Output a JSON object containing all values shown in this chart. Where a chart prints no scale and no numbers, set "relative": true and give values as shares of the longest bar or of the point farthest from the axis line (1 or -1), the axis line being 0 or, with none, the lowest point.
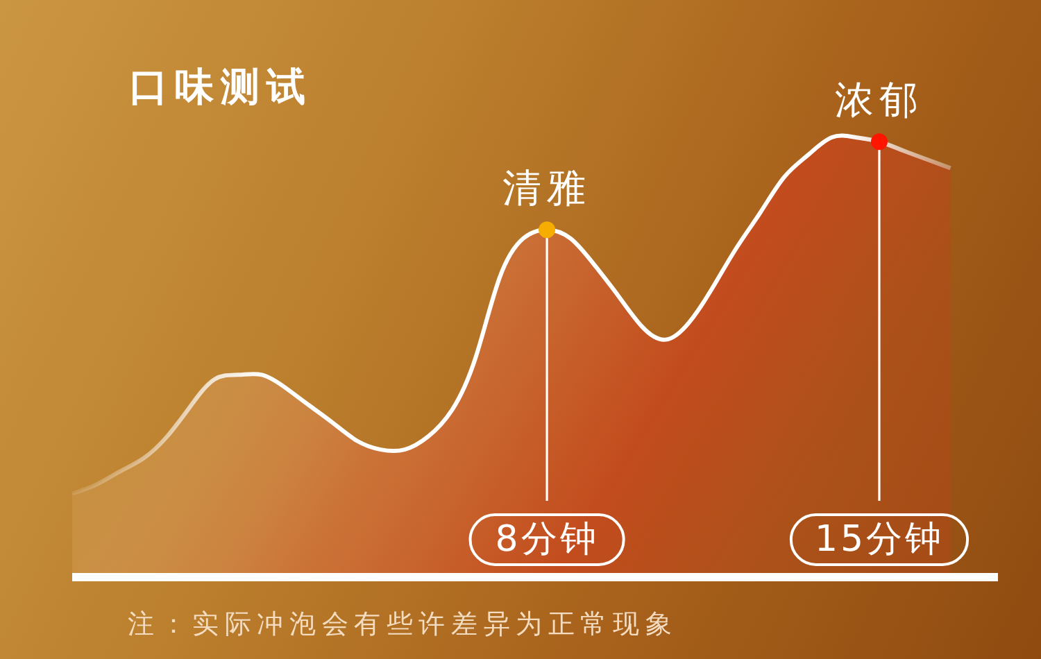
{
  "chart_data": {
    "type": "area",
    "title": "口味测试",
    "relative": true,
    "marker": "none",
    "color": "#ffffff",
    "categories": [
      null,
      null,
      null,
      null,
      null,
      null,
      null,
      null,
      null,
      null,
      null,
      null,
      null,
      null,
      null,
      null,
      null,
      null,
      null,
      null,
      "8分钟",
      null,
      null,
      null,
      null,
      null,
      null,
      null,
      null,
      null,
      null,
      null,
      null,
      null,
      "15分钟",
      null,
      null,
      null,
      null,
      null
    ],
    "values": [
      0.19,
      0.21,
      0.24,
      0.27,
      0.32,
      0.39,
      0.45,
      0.46,
      0.46,
      0.43,
      0.39,
      0.35,
      0.31,
      0.29,
      0.29,
      0.32,
      0.38,
      0.5,
      0.68,
      0.77,
      0.79,
      0.77,
      0.71,
      0.64,
      0.57,
      0.54,
      0.58,
      0.66,
      0.75,
      0.83,
      0.91,
      0.96,
      1.0,
      1.0,
      0.99,
      0.97,
      0.95,
      0.93,
      null,
      null
    ],
    "annotations": [
      {
        "text": "清雅",
        "x": "8分钟",
        "y": 0.79
      },
      {
        "text": "浓郁",
        "x": "15分钟",
        "y": 0.99
      },
      "注：实际冲泡会有些许差异为正常现象"
    ]
  }
}
